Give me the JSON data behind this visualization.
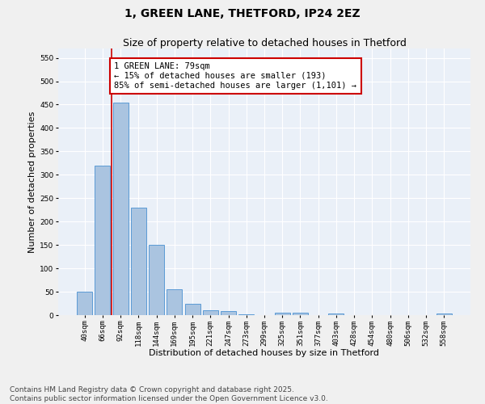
{
  "title": "1, GREEN LANE, THETFORD, IP24 2EZ",
  "subtitle": "Size of property relative to detached houses in Thetford",
  "xlabel": "Distribution of detached houses by size in Thetford",
  "ylabel": "Number of detached properties",
  "categories": [
    "40sqm",
    "66sqm",
    "92sqm",
    "118sqm",
    "144sqm",
    "169sqm",
    "195sqm",
    "221sqm",
    "247sqm",
    "273sqm",
    "299sqm",
    "325sqm",
    "351sqm",
    "377sqm",
    "403sqm",
    "428sqm",
    "454sqm",
    "480sqm",
    "506sqm",
    "532sqm",
    "558sqm"
  ],
  "values": [
    50,
    320,
    455,
    230,
    150,
    55,
    25,
    10,
    8,
    1,
    0,
    5,
    6,
    0,
    3,
    0,
    0,
    0,
    0,
    0,
    3
  ],
  "bar_color": "#aac4e0",
  "bar_edge_color": "#5b9bd5",
  "background_color": "#eaf0f8",
  "fig_background_color": "#f0f0f0",
  "grid_color": "#ffffff",
  "vline_color": "#cc0000",
  "vline_x": 1.5,
  "annotation_text": "1 GREEN LANE: 79sqm\n← 15% of detached houses are smaller (193)\n85% of semi-detached houses are larger (1,101) →",
  "annotation_box_color": "#ffffff",
  "annotation_box_edge": "#cc0000",
  "ylim": [
    0,
    570
  ],
  "yticks": [
    0,
    50,
    100,
    150,
    200,
    250,
    300,
    350,
    400,
    450,
    500,
    550
  ],
  "footer": "Contains HM Land Registry data © Crown copyright and database right 2025.\nContains public sector information licensed under the Open Government Licence v3.0.",
  "title_fontsize": 10,
  "subtitle_fontsize": 9,
  "xlabel_fontsize": 8,
  "ylabel_fontsize": 8,
  "tick_fontsize": 6.5,
  "annotation_fontsize": 7.5,
  "footer_fontsize": 6.5
}
